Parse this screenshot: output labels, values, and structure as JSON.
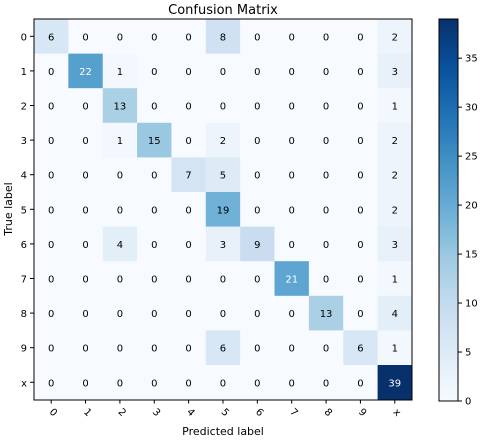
{
  "chart_data": {
    "type": "heatmap",
    "title": "Confusion Matrix",
    "xlabel": "Predicted label",
    "ylabel": "True label",
    "x_categories": [
      "0",
      "1",
      "2",
      "3",
      "4",
      "5",
      "6",
      "7",
      "8",
      "9",
      "x"
    ],
    "y_categories": [
      "0",
      "1",
      "2",
      "3",
      "4",
      "5",
      "6",
      "7",
      "8",
      "9",
      "x"
    ],
    "values": [
      [
        6,
        0,
        0,
        0,
        0,
        8,
        0,
        0,
        0,
        0,
        2
      ],
      [
        0,
        22,
        1,
        0,
        0,
        0,
        0,
        0,
        0,
        0,
        3
      ],
      [
        0,
        0,
        13,
        0,
        0,
        0,
        0,
        0,
        0,
        0,
        1
      ],
      [
        0,
        0,
        1,
        15,
        0,
        2,
        0,
        0,
        0,
        0,
        2
      ],
      [
        0,
        0,
        0,
        0,
        7,
        5,
        0,
        0,
        0,
        0,
        2
      ],
      [
        0,
        0,
        0,
        0,
        0,
        19,
        0,
        0,
        0,
        0,
        2
      ],
      [
        0,
        0,
        4,
        0,
        0,
        3,
        9,
        0,
        0,
        0,
        3
      ],
      [
        0,
        0,
        0,
        0,
        0,
        0,
        0,
        21,
        0,
        0,
        1
      ],
      [
        0,
        0,
        0,
        0,
        0,
        0,
        0,
        0,
        13,
        0,
        4
      ],
      [
        0,
        0,
        0,
        0,
        0,
        6,
        0,
        0,
        0,
        6,
        1
      ],
      [
        0,
        0,
        0,
        0,
        0,
        0,
        0,
        0,
        0,
        0,
        39
      ]
    ],
    "colormap": "Blues",
    "colorbar": {
      "min": 0,
      "max": 39,
      "ticks": [
        0,
        5,
        10,
        15,
        20,
        25,
        30,
        35
      ]
    },
    "x_tick_rotation_deg": 45
  }
}
